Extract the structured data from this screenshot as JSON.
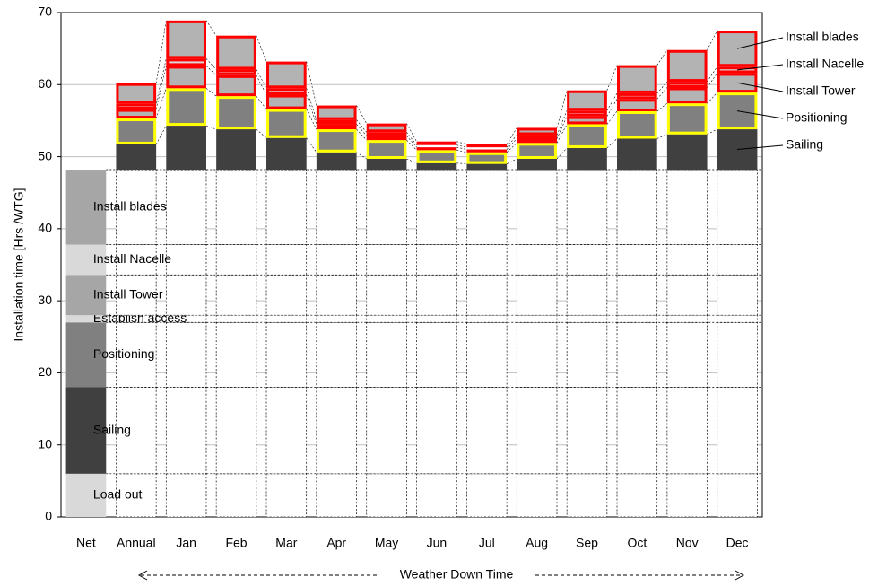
{
  "chart_data": {
    "type": "stacked_bar",
    "ylabel": "Installation time [Hrs /WTG]",
    "annotation": "Weather Down Time",
    "categories": [
      "Net",
      "Annual",
      "Jan",
      "Feb",
      "Mar",
      "Apr",
      "May",
      "Jun",
      "Jul",
      "Aug",
      "Sep",
      "Oct",
      "Nov",
      "Dec"
    ],
    "ylim": [
      0,
      70
    ],
    "yticks": [
      0,
      10,
      20,
      30,
      40,
      50,
      60,
      70
    ],
    "grid": true,
    "series": [
      {
        "name": "Load out",
        "color": "#d9d9d9",
        "values": [
          6,
          null,
          null,
          null,
          null,
          null,
          null,
          null,
          null,
          null,
          null,
          null,
          null,
          null
        ]
      },
      {
        "name": "Sailing",
        "color": "#404040",
        "values": [
          12,
          null,
          null,
          null,
          null,
          null,
          null,
          null,
          null,
          null,
          null,
          null,
          null,
          null
        ]
      },
      {
        "name": "Positioning",
        "color": "#808080",
        "values": [
          9,
          null,
          null,
          null,
          null,
          null,
          null,
          null,
          null,
          null,
          null,
          null,
          null,
          null
        ]
      },
      {
        "name": "Establish access",
        "color": "#d9d9d9",
        "values": [
          1,
          null,
          null,
          null,
          null,
          null,
          null,
          null,
          null,
          null,
          null,
          null,
          null,
          null
        ]
      },
      {
        "name": "Install Tower",
        "color": "#a6a6a6",
        "values": [
          5.6,
          null,
          null,
          null,
          null,
          null,
          null,
          null,
          null,
          null,
          null,
          null,
          null,
          null
        ]
      },
      {
        "name": "Install Nacelle",
        "color": "#d9d9d9",
        "values": [
          4.2,
          null,
          null,
          null,
          null,
          null,
          null,
          null,
          null,
          null,
          null,
          null,
          null,
          null
        ]
      },
      {
        "name": "Install blades",
        "color": "#a6a6a6",
        "values": [
          10.4,
          null,
          null,
          null,
          null,
          null,
          null,
          null,
          null,
          null,
          null,
          null,
          null,
          null
        ]
      },
      {
        "name": "Sailing",
        "color": "#404040",
        "edgecolor": "#404040",
        "values": [
          null,
          3.5,
          6.1,
          5.6,
          4.4,
          2.4,
          1.5,
          0.9,
          0.8,
          1.5,
          3.0,
          4.3,
          4.9,
          5.6
        ]
      },
      {
        "name": "Positioning",
        "color": "#808080",
        "edgecolor": "#ffff00",
        "values": [
          null,
          3.6,
          5.2,
          4.6,
          4.0,
          3.2,
          2.6,
          1.8,
          1.6,
          2.2,
          3.3,
          3.8,
          4.3,
          5.1
        ]
      },
      {
        "name": "Install Tower",
        "color": "#b3b3b3",
        "edgecolor": "#ff0000",
        "values": [
          null,
          1.3,
          3.1,
          2.9,
          2.0,
          0.7,
          0.6,
          0.4,
          0.4,
          0.6,
          1.1,
          1.7,
          2.2,
          2.7
        ]
      },
      {
        "name": "Install Nacelle",
        "color": "#d9d9d9",
        "edgecolor": "#ff0000",
        "values": [
          null,
          0.8,
          1.0,
          0.8,
          0.9,
          0.6,
          0.5,
          0.3,
          0.3,
          0.5,
          0.8,
          0.8,
          0.8,
          0.9
        ]
      },
      {
        "name": "Install blades",
        "color": "#b3b3b3",
        "edgecolor": "#ff0000",
        "values": [
          null,
          2.8,
          5.3,
          4.7,
          3.7,
          2.0,
          1.2,
          0.5,
          0.4,
          1.0,
          2.8,
          3.9,
          4.4,
          5.0
        ]
      }
    ]
  }
}
